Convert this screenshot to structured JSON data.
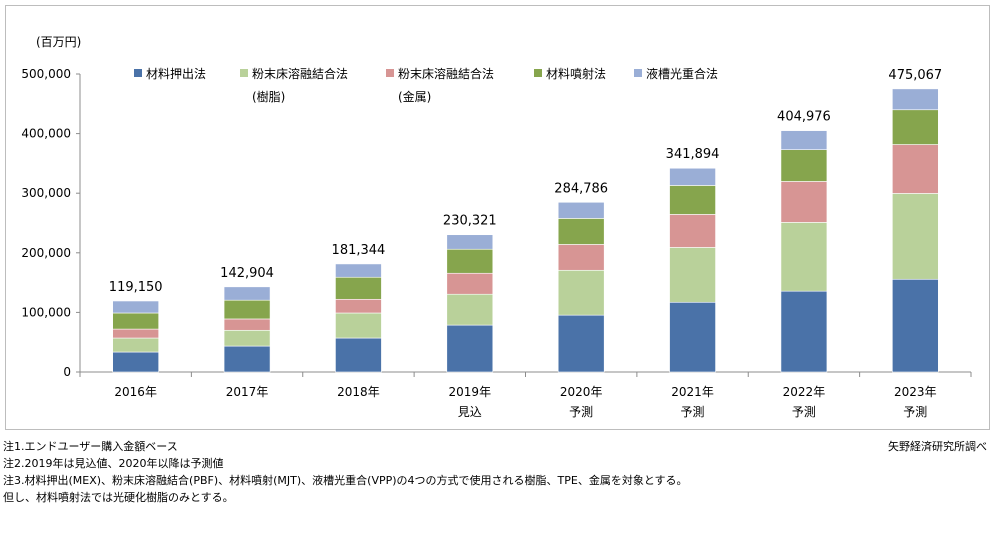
{
  "chart_data": {
    "type": "bar",
    "stacked": true,
    "unit_label": "(百万円)",
    "categories": [
      "2016年",
      "2017年",
      "2018年",
      "2019年",
      "2020年",
      "2021年",
      "2022年",
      "2023年"
    ],
    "category_sublabels": [
      "",
      "",
      "",
      "見込",
      "予測",
      "予測",
      "予測",
      "予測"
    ],
    "totals": [
      "119,150",
      "142,904",
      "181,344",
      "230,321",
      "284,786",
      "341,894",
      "404,976",
      "475,067"
    ],
    "total_values": [
      119150,
      142904,
      181344,
      230321,
      284786,
      341894,
      404976,
      475067
    ],
    "series": [
      {
        "name": "材料押出法",
        "name_line2": "",
        "color": "#4a72a8",
        "values": [
          33500,
          43500,
          57000,
          78700,
          95400,
          117000,
          135600,
          155600
        ]
      },
      {
        "name": "粉末床溶融結合法",
        "name_line2": "(樹脂)",
        "color": "#b9d19a",
        "values": [
          23500,
          26500,
          42000,
          51800,
          75300,
          92000,
          115400,
          144000
        ]
      },
      {
        "name": "粉末床溶融結合法",
        "name_line2": "(金属)",
        "color": "#d79594",
        "values": [
          15000,
          19000,
          23000,
          35200,
          43300,
          55400,
          68700,
          82000
        ]
      },
      {
        "name": "材料噴射法",
        "name_line2": "",
        "color": "#86a54d",
        "values": [
          27000,
          31500,
          37000,
          40300,
          43700,
          48600,
          53300,
          58400
        ]
      },
      {
        "name": "液槽光重合法",
        "name_line2": "",
        "color": "#9aaed6",
        "values": [
          20150,
          22404,
          22344,
          24321,
          27086,
          28894,
          31976,
          35067
        ]
      }
    ],
    "y_ticks": [
      0,
      100000,
      200000,
      300000,
      400000,
      500000
    ],
    "y_tick_labels": [
      "0",
      "100,000",
      "200,000",
      "300,000",
      "400,000",
      "500,000"
    ],
    "ylim": [
      0,
      500000
    ],
    "grid": false,
    "legend_position": "top",
    "title": "",
    "xlabel": "",
    "ylabel": "(百万円)"
  },
  "notes": [
    "注1.エンドユーザー購入金額ベース",
    "注2.2019年は見込値、2020年以降は予測値",
    "注3.材料押出(MEX)、粉末床溶融結合(PBF)、材料噴射(MJT)、液槽光重合(VPP)の4つの方式で使用される樹脂、TPE、金属を対象とする。",
    "但し、材料噴射法では光硬化樹脂のみとする。"
  ],
  "source": "矢野経済研究所調べ"
}
